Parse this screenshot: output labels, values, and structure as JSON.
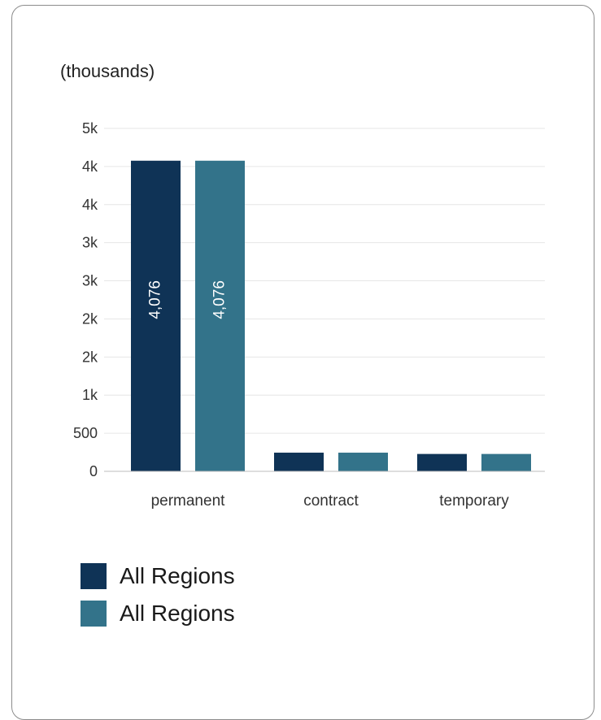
{
  "chart_data": {
    "type": "bar",
    "unit_label": "(thousands)",
    "categories": [
      "permanent",
      "contract",
      "temporary"
    ],
    "series": [
      {
        "name": "All Regions",
        "color": "#0f3356",
        "values": [
          4076,
          245,
          228
        ]
      },
      {
        "name": "All Regions",
        "color": "#33738a",
        "values": [
          4076,
          245,
          228
        ]
      }
    ],
    "data_labels": [
      "4,076",
      "4,076"
    ],
    "y_ticks": [
      {
        "value": 0,
        "label": "0"
      },
      {
        "value": 500,
        "label": "500"
      },
      {
        "value": 1000,
        "label": "1k"
      },
      {
        "value": 1500,
        "label": "2k"
      },
      {
        "value": 2000,
        "label": "2k"
      },
      {
        "value": 2500,
        "label": "3k"
      },
      {
        "value": 3000,
        "label": "3k"
      },
      {
        "value": 3500,
        "label": "4k"
      },
      {
        "value": 4000,
        "label": "4k"
      },
      {
        "value": 4500,
        "label": "5k"
      }
    ],
    "ylim": [
      0,
      4500
    ],
    "grid": true,
    "legend_position": "bottom-left"
  }
}
